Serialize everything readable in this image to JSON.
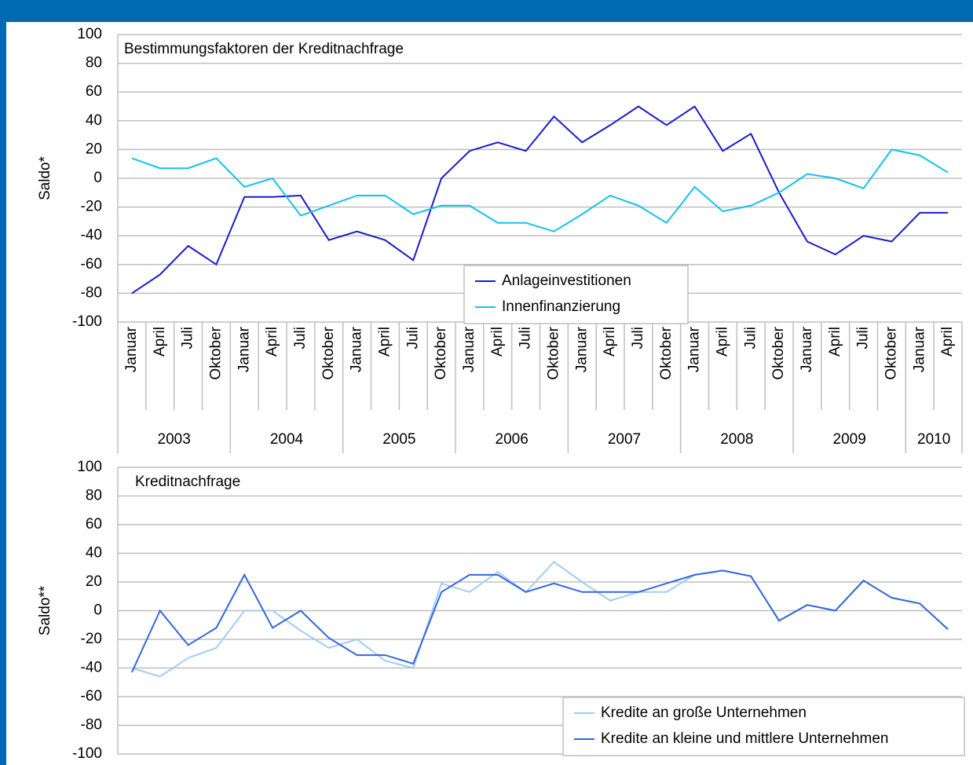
{
  "chart_data": [
    {
      "type": "line",
      "title": "Bestimmungsfaktoren der Kreditnachfrage",
      "ylabel": "Saldo*",
      "groups": [
        {
          "label": "2003",
          "categories": [
            "Januar",
            "April",
            "Juli",
            "Oktober"
          ]
        },
        {
          "label": "2004",
          "categories": [
            "Januar",
            "April",
            "Juli",
            "Oktober"
          ]
        },
        {
          "label": "2005",
          "categories": [
            "Januar",
            "April",
            "Juli",
            "Oktober"
          ]
        },
        {
          "label": "2006",
          "categories": [
            "Januar",
            "April",
            "Juli",
            "Oktober"
          ]
        },
        {
          "label": "2007",
          "categories": [
            "Januar",
            "April",
            "Juli",
            "Oktober"
          ]
        },
        {
          "label": "2008",
          "categories": [
            "Januar",
            "April",
            "Juli",
            "Oktober"
          ]
        },
        {
          "label": "2009",
          "categories": [
            "Januar",
            "April",
            "Juli",
            "Oktober"
          ]
        },
        {
          "label": "2010",
          "categories": [
            "Januar",
            "April"
          ]
        }
      ],
      "series": [
        {
          "name": "Anlageinvestitionen",
          "color": "#1a1acc",
          "values": [
            -80,
            -67,
            -47,
            -60,
            -13,
            -13,
            -12,
            -43,
            -37,
            -43,
            -57,
            0,
            19,
            25,
            19,
            43,
            25,
            37,
            50,
            37,
            50,
            19,
            31,
            -10,
            -44,
            -53,
            -40,
            -44,
            -24,
            -24
          ]
        },
        {
          "name": "Innenfinanzierung",
          "color": "#12c2ec",
          "values": [
            14,
            7,
            7,
            14,
            -6,
            0,
            -26,
            -19,
            -12,
            -12,
            -25,
            -19,
            -19,
            -31,
            -31,
            -37,
            -25,
            -12,
            -19,
            -31,
            -6,
            -23,
            -19,
            -10,
            3,
            0,
            -7,
            20,
            16,
            4
          ]
        }
      ],
      "ylim": [
        -100,
        100
      ],
      "yticks": [
        -100,
        -80,
        -60,
        -40,
        -20,
        0,
        20,
        40,
        60,
        80,
        100
      ],
      "grid": true,
      "legend": "bottom-center"
    },
    {
      "type": "line",
      "title": "Kreditnachfrage",
      "ylabel": "Saldo**",
      "series": [
        {
          "name": "Kredite an große Unternehmen",
          "color": "#9fcdf5",
          "values": [
            -40,
            -46,
            -33,
            -26,
            0,
            0,
            -14,
            -26,
            -20,
            -35,
            -40,
            19,
            13,
            27,
            13,
            34,
            20,
            7,
            13,
            13,
            25,
            28,
            24,
            -7,
            4,
            0,
            21,
            9,
            5,
            -13
          ]
        },
        {
          "name": "Kredite an kleine und mittlere Unternehmen",
          "color": "#3366dd",
          "values": [
            -43,
            0,
            -24,
            -12,
            25,
            -12,
            0,
            -19,
            -31,
            -31,
            -37,
            13,
            25,
            25,
            13,
            19,
            13,
            13,
            13,
            19,
            25,
            28,
            24,
            -7,
            4,
            0,
            21,
            9,
            5,
            -13
          ]
        }
      ],
      "ylim": [
        -100,
        100
      ],
      "yticks": [
        -100,
        -80,
        -60,
        -40,
        -20,
        0,
        20,
        40,
        60,
        80,
        100
      ],
      "grid": true,
      "legend": "bottom-right"
    }
  ]
}
